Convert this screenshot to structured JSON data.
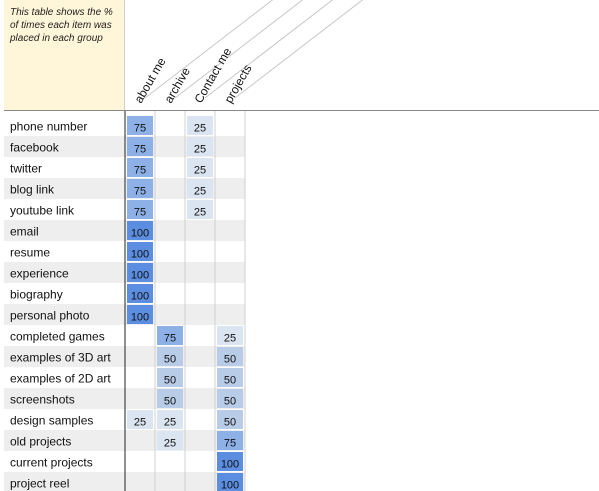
{
  "note": "This table shows the % of times each item was placed in each group",
  "chart_data": {
    "type": "heatmap",
    "columns": [
      "about me",
      "archive",
      "Contact me",
      "projects"
    ],
    "rows": [
      {
        "label": "phone number",
        "values": [
          75,
          null,
          25,
          null
        ]
      },
      {
        "label": "facebook",
        "values": [
          75,
          null,
          25,
          null
        ]
      },
      {
        "label": "twitter",
        "values": [
          75,
          null,
          25,
          null
        ]
      },
      {
        "label": "blog link",
        "values": [
          75,
          null,
          25,
          null
        ]
      },
      {
        "label": "youtube link",
        "values": [
          75,
          null,
          25,
          null
        ]
      },
      {
        "label": "email",
        "values": [
          100,
          null,
          null,
          null
        ]
      },
      {
        "label": "resume",
        "values": [
          100,
          null,
          null,
          null
        ]
      },
      {
        "label": "experience",
        "values": [
          100,
          null,
          null,
          null
        ]
      },
      {
        "label": "biography",
        "values": [
          100,
          null,
          null,
          null
        ]
      },
      {
        "label": "personal photo",
        "values": [
          100,
          null,
          null,
          null
        ]
      },
      {
        "label": "completed games",
        "values": [
          null,
          75,
          null,
          25
        ]
      },
      {
        "label": "examples of 3D art",
        "values": [
          null,
          50,
          null,
          50
        ]
      },
      {
        "label": "examples of 2D art",
        "values": [
          null,
          50,
          null,
          50
        ]
      },
      {
        "label": "screenshots",
        "values": [
          null,
          50,
          null,
          50
        ]
      },
      {
        "label": "design samples",
        "values": [
          25,
          25,
          null,
          50
        ]
      },
      {
        "label": "old projects",
        "values": [
          null,
          25,
          null,
          75
        ]
      },
      {
        "label": "current projects",
        "values": [
          null,
          null,
          null,
          100
        ]
      },
      {
        "label": "project reel",
        "values": [
          null,
          null,
          null,
          100
        ]
      }
    ],
    "colors": {
      "25": "#dbe5f1",
      "50": "#b8cce8",
      "75": "#8db0e6",
      "100": "#5b8de0",
      "stripe": "#eeeeee"
    }
  }
}
